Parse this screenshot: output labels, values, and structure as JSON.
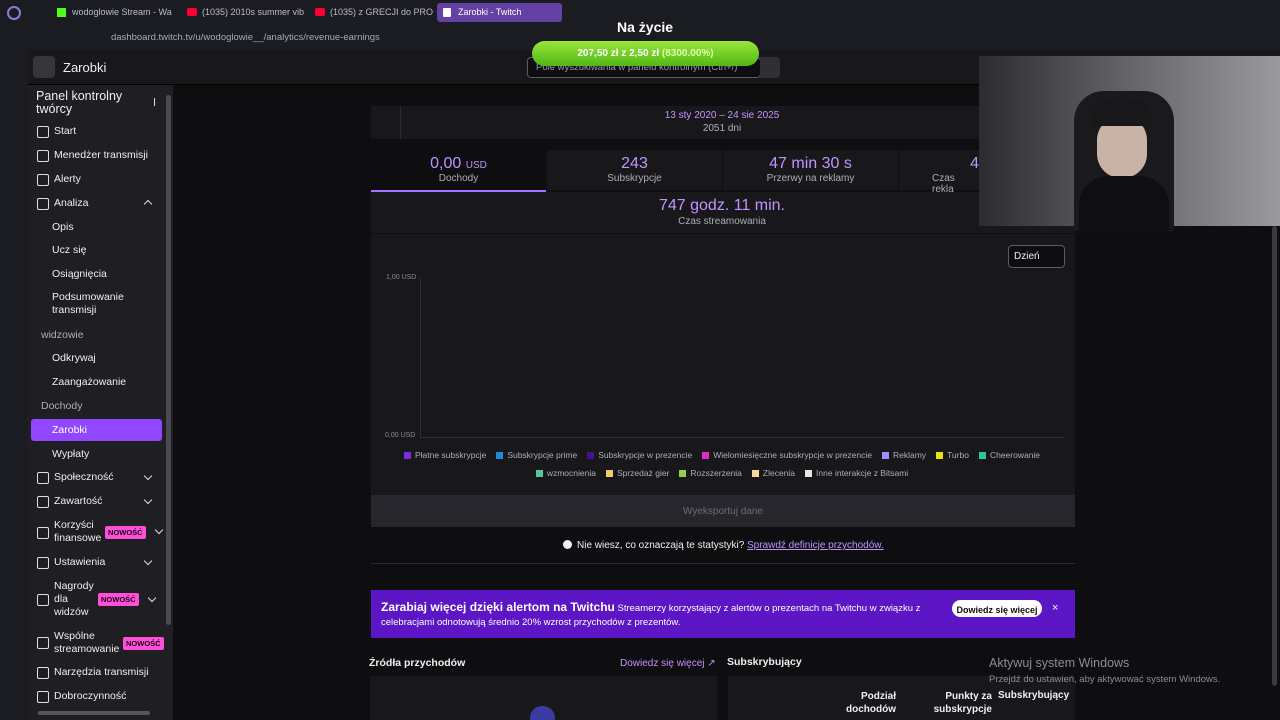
{
  "browser": {
    "tabs": [
      "wodoglowie Stream - Wa",
      "(1035) 2010s summer vib",
      "(1035) z GRECJI do PRO",
      "Zarobki - Twitch"
    ],
    "url": "dashboard.twitch.tv/u/wodoglowie__/analytics/revenue-earnings"
  },
  "overlay": {
    "title": "Na życie",
    "current": "207,50 zł",
    "separator": "z",
    "goal": "2,50 zł",
    "percent": "(8300.00%)"
  },
  "header": {
    "title": "Zarobki",
    "search_placeholder": "Pole wyszukiwania w panelu kontrolnym (Ctrl+/)"
  },
  "sidebar": {
    "title": "Panel kontrolny twórcy",
    "items": [
      "Start",
      "Menedżer transmisji",
      "Alerty",
      "Analiza",
      "Opis",
      "Ucz się",
      "Osiągnięcia",
      "Podsumowanie transmisji",
      "widzowie",
      "Odkrywaj",
      "Zaangażowanie",
      "Dochody",
      "Zarobki",
      "Wypłaty",
      "Społeczność",
      "Zawartość",
      "Korzyści finansowe",
      "Ustawienia",
      "Nagrody dla widzów",
      "Wspólne streamowanie",
      "Narzędzia transmisji",
      "Dobroczynność"
    ],
    "badge": "NOWOŚĆ"
  },
  "date_range": {
    "range": "13 sty 2020 – 24 sie 2025",
    "days": "2051 dni"
  },
  "stats": [
    {
      "value": "0,00",
      "unit": "USD",
      "label": "Dochody"
    },
    {
      "value": "243",
      "label": "Subskrypcje"
    },
    {
      "value": "47 min 30 s",
      "label": "Przerwy na reklamy"
    },
    {
      "value": "4",
      "label": "Czas rekla"
    }
  ],
  "stream_time": {
    "value": "747 godz. 11 min.",
    "label": "Czas streamowania"
  },
  "chart": {
    "interval": "Dzień",
    "y_labels": [
      "1,00 USD",
      "0,00 USD"
    ],
    "legend": [
      {
        "name": "Płatne subskrypcje",
        "color": "#772ce8"
      },
      {
        "name": "Subskrypcje prime",
        "color": "#1f8ad8"
      },
      {
        "name": "Subskrypcje w prezencie",
        "color": "#451093"
      },
      {
        "name": "Wielomiesięczne subskrypcje w prezencie",
        "color": "#d82ec7"
      },
      {
        "name": "Reklamy",
        "color": "#a68cff"
      },
      {
        "name": "Turbo",
        "color": "#e8e20d"
      },
      {
        "name": "Cheerowanie",
        "color": "#2fc49c"
      },
      {
        "name": "wzmocnienia",
        "color": "#52c99f"
      },
      {
        "name": "Sprzedaż gier",
        "color": "#f3c96a"
      },
      {
        "name": "Rozszerzenia",
        "color": "#8fd14f"
      },
      {
        "name": "Zlecenia",
        "color": "#f1d9a0"
      },
      {
        "name": "Inne interakcje z Bitsami",
        "color": "#e6e6e6"
      }
    ],
    "export": "Wyeksportuj dane"
  },
  "help": {
    "question": "Nie wiesz, co oznaczają te statystyki?",
    "link": "Sprawdź definicje przychodów."
  },
  "banner": {
    "title": "Zarabiaj więcej dzięki alertom na Twitchu",
    "text": "Streamerzy korzystający z alertów o prezentach na Twitchu w związku z celebracjami odnotowują średnio 20% wzrost przychodów z prezentów.",
    "button": "Dowiedz się więcej"
  },
  "sources": {
    "title": "Źródła przychodów",
    "link": "Dowiedz się więcej ↗"
  },
  "subscribers": {
    "title": "Subskrybujący",
    "columns": [
      "Podział dochodów",
      "Punkty za subskrypcje",
      "Subskrybujący"
    ]
  },
  "watermark": {
    "title": "Aktywuj system Windows",
    "text": "Przejdź do ustawień, aby aktywować system Windows."
  }
}
